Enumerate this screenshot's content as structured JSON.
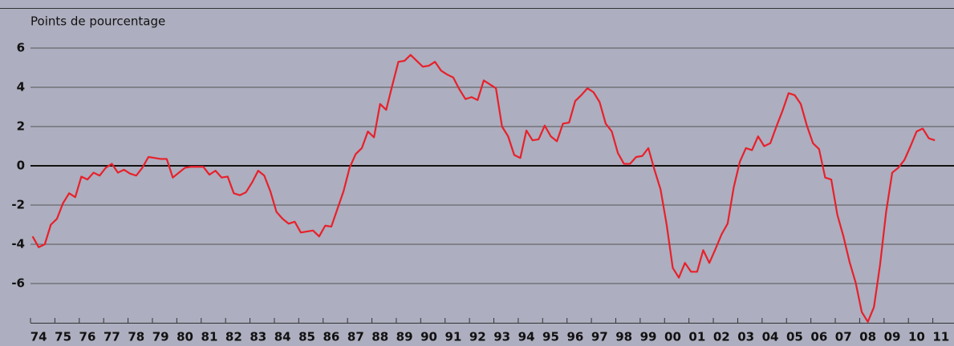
{
  "chart_data": {
    "type": "line",
    "y_axis_label": "Points de pourcentage",
    "ylim": [
      -8,
      8
    ],
    "yticks": [
      -6,
      -4,
      -2,
      0,
      2,
      4,
      6
    ],
    "xlim": [
      1974,
      2012
    ],
    "xticks": [
      {
        "value": 1974,
        "label": "74"
      },
      {
        "value": 1975,
        "label": "75"
      },
      {
        "value": 1976,
        "label": "76"
      },
      {
        "value": 1977,
        "label": "77"
      },
      {
        "value": 1978,
        "label": "78"
      },
      {
        "value": 1979,
        "label": "79"
      },
      {
        "value": 1980,
        "label": "80"
      },
      {
        "value": 1981,
        "label": "81"
      },
      {
        "value": 1982,
        "label": "82"
      },
      {
        "value": 1983,
        "label": "83"
      },
      {
        "value": 1984,
        "label": "84"
      },
      {
        "value": 1985,
        "label": "85"
      },
      {
        "value": 1986,
        "label": "86"
      },
      {
        "value": 1987,
        "label": "87"
      },
      {
        "value": 1988,
        "label": "88"
      },
      {
        "value": 1989,
        "label": "89"
      },
      {
        "value": 1990,
        "label": "90"
      },
      {
        "value": 1991,
        "label": "91"
      },
      {
        "value": 1992,
        "label": "92"
      },
      {
        "value": 1993,
        "label": "93"
      },
      {
        "value": 1994,
        "label": "94"
      },
      {
        "value": 1995,
        "label": "95"
      },
      {
        "value": 1996,
        "label": "96"
      },
      {
        "value": 1997,
        "label": "97"
      },
      {
        "value": 1998,
        "label": "98"
      },
      {
        "value": 1999,
        "label": "99"
      },
      {
        "value": 2000,
        "label": "00"
      },
      {
        "value": 2001,
        "label": "01"
      },
      {
        "value": 2002,
        "label": "02"
      },
      {
        "value": 2003,
        "label": "03"
      },
      {
        "value": 2004,
        "label": "04"
      },
      {
        "value": 2005,
        "label": "05"
      },
      {
        "value": 2006,
        "label": "06"
      },
      {
        "value": 2007,
        "label": "07"
      },
      {
        "value": 2008,
        "label": "08"
      },
      {
        "value": 2009,
        "label": "09"
      },
      {
        "value": 2010,
        "label": "10"
      },
      {
        "value": 2011,
        "label": "11"
      }
    ],
    "grid": true,
    "x": [
      1974.25,
      1974.5,
      1974.75,
      1975,
      1975.25,
      1975.5,
      1975.75,
      1976,
      1976.25,
      1976.5,
      1976.75,
      1977,
      1977.25,
      1977.5,
      1977.75,
      1978,
      1978.25,
      1978.5,
      1978.75,
      1979,
      1979.25,
      1979.5,
      1979.75,
      1980,
      1980.25,
      1980.5,
      1980.75,
      1981,
      1981.25,
      1981.5,
      1981.75,
      1982,
      1982.25,
      1982.5,
      1982.75,
      1983,
      1983.25,
      1983.5,
      1983.75,
      1984,
      1984.25,
      1984.5,
      1984.75,
      1985,
      1985.25,
      1985.5,
      1985.75,
      1986,
      1986.25,
      1986.5,
      1986.75,
      1987,
      1987.25,
      1987.5,
      1987.75,
      1988,
      1988.25,
      1988.5,
      1988.75,
      1989,
      1989.25,
      1989.5,
      1989.75,
      1990,
      1990.25,
      1990.5,
      1990.75,
      1991,
      1991.25,
      1991.5,
      1991.75,
      1992,
      1992.25,
      1992.5,
      1992.75,
      1993,
      1993.25,
      1993.5,
      1993.75,
      1994,
      1994.25,
      1994.5,
      1994.75,
      1995,
      1995.25,
      1995.5,
      1995.75,
      1996,
      1996.25,
      1996.5,
      1996.75,
      1997,
      1997.25,
      1997.5,
      1997.75,
      1998,
      1998.25,
      1998.5,
      1998.75,
      1999,
      1999.25,
      1999.5,
      1999.75,
      2000,
      2000.25,
      2000.5,
      2000.75,
      2001,
      2001.25,
      2001.5,
      2001.75,
      2002,
      2002.25,
      2002.5,
      2002.75,
      2003,
      2003.25,
      2003.5,
      2003.75,
      2004,
      2004.25,
      2004.5,
      2004.75,
      2005,
      2005.25,
      2005.5,
      2005.75,
      2006,
      2006.25,
      2006.5,
      2006.75,
      2007,
      2007.25,
      2007.5,
      2007.75,
      2008,
      2008.25,
      2008.5,
      2008.75,
      2009,
      2009.25,
      2009.5,
      2009.75,
      2010,
      2010.25,
      2010.5,
      2010.75,
      2011,
      2011.25
    ],
    "series": [
      {
        "color": "#e8202a",
        "values": [
          -3.6,
          -4.15,
          -4.0,
          -3.0,
          -2.7,
          -1.9,
          -1.4,
          -1.6,
          -0.55,
          -0.7,
          -0.35,
          -0.5,
          -0.1,
          0.1,
          -0.35,
          -0.2,
          -0.4,
          -0.5,
          -0.1,
          0.45,
          0.4,
          0.35,
          0.35,
          -0.6,
          -0.35,
          -0.1,
          -0.05,
          -0.05,
          -0.05,
          -0.45,
          -0.25,
          -0.6,
          -0.55,
          -1.4,
          -1.5,
          -1.35,
          -0.85,
          -0.25,
          -0.5,
          -1.3,
          -2.35,
          -2.7,
          -2.95,
          -2.85,
          -3.4,
          -3.35,
          -3.3,
          -3.6,
          -3.05,
          -3.1,
          -2.2,
          -1.3,
          -0.1,
          0.6,
          0.9,
          1.75,
          1.45,
          3.15,
          2.85,
          4.1,
          5.3,
          5.35,
          5.65,
          5.35,
          5.05,
          5.1,
          5.3,
          4.85,
          4.65,
          4.5,
          3.9,
          3.4,
          3.5,
          3.35,
          4.35,
          4.15,
          3.95,
          2.0,
          1.5,
          0.55,
          0.4,
          1.8,
          1.3,
          1.35,
          2.05,
          1.5,
          1.25,
          2.15,
          2.2,
          3.3,
          3.6,
          3.95,
          3.75,
          3.25,
          2.15,
          1.75,
          0.65,
          0.1,
          0.1,
          0.45,
          0.5,
          0.9,
          -0.2,
          -1.2,
          -3.0,
          -5.2,
          -5.7,
          -4.95,
          -5.4,
          -5.4,
          -4.3,
          -4.95,
          -4.25,
          -3.5,
          -2.95,
          -1.1,
          0.2,
          0.9,
          0.8,
          1.5,
          1.0,
          1.15,
          2.0,
          2.8,
          3.7,
          3.6,
          3.15,
          2.05,
          1.15,
          0.85,
          -0.6,
          -0.7,
          -2.5,
          -3.6,
          -4.9,
          -5.95,
          -7.45,
          -7.95,
          -7.2,
          -5.05,
          -2.35,
          -0.35,
          -0.1,
          0.3,
          1.0,
          1.75,
          1.9,
          1.4,
          1.3
        ]
      }
    ]
  }
}
